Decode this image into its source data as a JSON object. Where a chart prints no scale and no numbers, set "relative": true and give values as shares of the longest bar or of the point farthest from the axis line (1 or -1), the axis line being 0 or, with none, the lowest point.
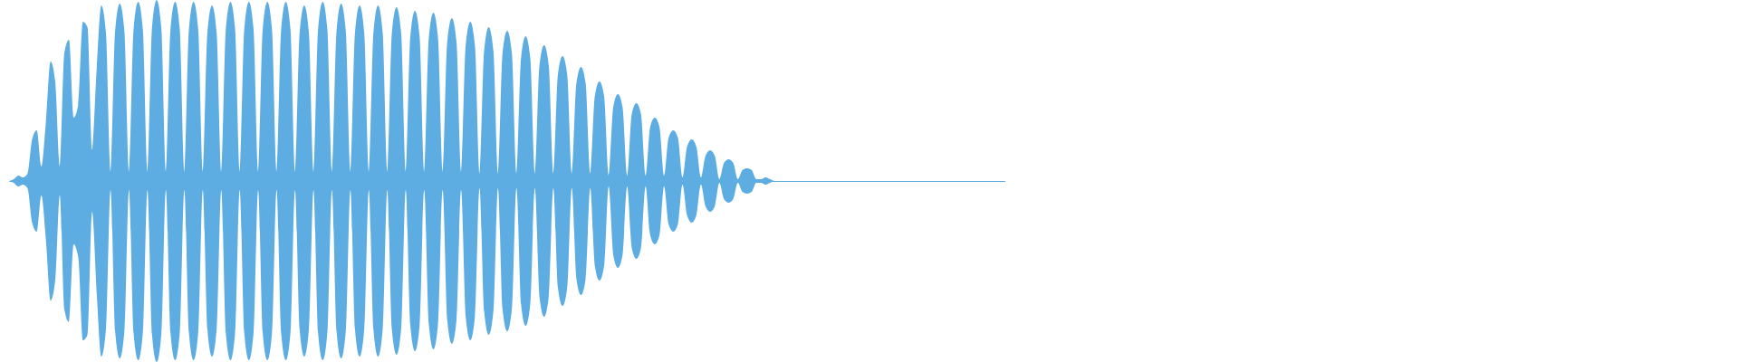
{
  "chart_data": {
    "type": "area",
    "relative": true,
    "categories": [
      null,
      null,
      null,
      null,
      null,
      null,
      null,
      null,
      null,
      null,
      null,
      null,
      null,
      null,
      null,
      null,
      null,
      null,
      null,
      null,
      null,
      null,
      null,
      null,
      null,
      null,
      null,
      null,
      null,
      null,
      null,
      null,
      null,
      null,
      null,
      null,
      null,
      null,
      null,
      null,
      null,
      null,
      null,
      null,
      null,
      null,
      null,
      null,
      null,
      null,
      null,
      null,
      null,
      null,
      null,
      null,
      null,
      null,
      null,
      null,
      null,
      null,
      null,
      null,
      null,
      null,
      null,
      null,
      null,
      null,
      null,
      null,
      null,
      null,
      null,
      null,
      null,
      null,
      null,
      null,
      null,
      null,
      null,
      null,
      null,
      null,
      null,
      null,
      null,
      null,
      null,
      null,
      null,
      null,
      null,
      null,
      null,
      null,
      null,
      null,
      null,
      null,
      null,
      null,
      null,
      null,
      null,
      null,
      null,
      null,
      null,
      null,
      null,
      null,
      null,
      null,
      null,
      null,
      null,
      null,
      null,
      null,
      null,
      null,
      null,
      null,
      null,
      null,
      null,
      null,
      null,
      null,
      null,
      null,
      null,
      null,
      null,
      null,
      null,
      null,
      null,
      null,
      null,
      null,
      null,
      null,
      null,
      null,
      null,
      null,
      null,
      null,
      null,
      null,
      null,
      null,
      null,
      null,
      null,
      null,
      null,
      null,
      null,
      null,
      null,
      null,
      null,
      null,
      null,
      null,
      null,
      null,
      null,
      null,
      null,
      null,
      null,
      null,
      null,
      null,
      null,
      null,
      null,
      null,
      null,
      null,
      null,
      null,
      null,
      null,
      null,
      null,
      null,
      null,
      null,
      null,
      null,
      null,
      null,
      null,
      null,
      null,
      null,
      null,
      null,
      null,
      null,
      null,
      null,
      null,
      null,
      null,
      null,
      null,
      null,
      null,
      null
    ],
    "series": [
      {
        "color": "#5dade2",
        "values": [
          0,
          0.01,
          0.03,
          0.02,
          0.04,
          0.23,
          0.28,
          0.08,
          0.33,
          0.66,
          0.55,
          0.08,
          0.71,
          0.78,
          0.35,
          0.42,
          0.88,
          0.85,
          0.17,
          0.62,
          0.97,
          0.82,
          0.05,
          0.83,
          0.98,
          0.83,
          0.05,
          0.84,
          0.99,
          0.84,
          0.05,
          0.85,
          1,
          0.85,
          0.05,
          0.84,
          0.99,
          0.84,
          0.05,
          0.84,
          0.99,
          0.84,
          0.05,
          0.82,
          0.97,
          0.82,
          0.05,
          0.84,
          0.99,
          0.84,
          0.05,
          0.84,
          0.99,
          0.84,
          0.05,
          0.84,
          0.99,
          0.84,
          0.05,
          0.84,
          0.99,
          0.84,
          0.05,
          0.82,
          0.97,
          0.82,
          0.05,
          0.84,
          0.99,
          0.84,
          0.05,
          0.83,
          0.98,
          0.83,
          0.05,
          0.82,
          0.97,
          0.82,
          0.05,
          0.82,
          0.97,
          0.82,
          0.05,
          0.82,
          0.96,
          0.82,
          0.05,
          0.8,
          0.94,
          0.8,
          0.05,
          0.79,
          0.93,
          0.79,
          0.05,
          0.77,
          0.9,
          0.77,
          0.05,
          0.75,
          0.88,
          0.75,
          0.04,
          0.72,
          0.85,
          0.72,
          0.04,
          0.71,
          0.83,
          0.71,
          0.04,
          0.68,
          0.8,
          0.68,
          0.04,
          0.64,
          0.75,
          0.64,
          0.04,
          0.59,
          0.69,
          0.59,
          0.04,
          0.54,
          0.63,
          0.54,
          0.04,
          0.47,
          0.55,
          0.47,
          0.03,
          0.41,
          0.48,
          0.41,
          0.03,
          0.37,
          0.43,
          0.37,
          0.03,
          0.3,
          0.35,
          0.3,
          0.03,
          0.24,
          0.28,
          0.24,
          0.02,
          0.19,
          0.23,
          0.19,
          0.02,
          0.14,
          0.17,
          0.14,
          0.01,
          0.1,
          0.12,
          0.1,
          0.01,
          0.06,
          0.07,
          0.06,
          0.01,
          0.01,
          0.02,
          0.01,
          0,
          0,
          0,
          0,
          0,
          0,
          0,
          0,
          0,
          0,
          0,
          0,
          0,
          0,
          0,
          0,
          0,
          0,
          0,
          0,
          0,
          0,
          0,
          0,
          0,
          0,
          0,
          0,
          0,
          0,
          0,
          0,
          0,
          0,
          0,
          0,
          0,
          0,
          0,
          0,
          0,
          0,
          0,
          0,
          0,
          0,
          0,
          0,
          0,
          0,
          0
        ]
      },
      {
        "color": "#5dade3",
        "values": [
          0,
          -0.01,
          -0.03,
          -0.02,
          -0.04,
          -0.23,
          -0.28,
          -0.08,
          -0.33,
          -0.66,
          -0.55,
          -0.08,
          -0.71,
          -0.78,
          -0.35,
          -0.42,
          -0.88,
          -0.85,
          -0.17,
          -0.62,
          -0.97,
          -0.82,
          -0.05,
          -0.83,
          -0.98,
          -0.83,
          -0.05,
          -0.84,
          -0.99,
          -0.84,
          -0.05,
          -0.85,
          -1,
          -0.85,
          -0.05,
          -0.84,
          -0.99,
          -0.84,
          -0.05,
          -0.84,
          -0.99,
          -0.84,
          -0.05,
          -0.82,
          -0.97,
          -0.82,
          -0.05,
          -0.84,
          -0.99,
          -0.84,
          -0.05,
          -0.84,
          -0.99,
          -0.84,
          -0.05,
          -0.84,
          -0.99,
          -0.84,
          -0.05,
          -0.84,
          -0.99,
          -0.84,
          -0.05,
          -0.82,
          -0.97,
          -0.82,
          -0.05,
          -0.84,
          -0.99,
          -0.84,
          -0.05,
          -0.83,
          -0.98,
          -0.83,
          -0.05,
          -0.82,
          -0.97,
          -0.82,
          -0.05,
          -0.82,
          -0.97,
          -0.82,
          -0.05,
          -0.82,
          -0.96,
          -0.82,
          -0.05,
          -0.8,
          -0.94,
          -0.8,
          -0.05,
          -0.79,
          -0.93,
          -0.79,
          -0.05,
          -0.77,
          -0.9,
          -0.77,
          -0.05,
          -0.75,
          -0.88,
          -0.75,
          -0.04,
          -0.72,
          -0.85,
          -0.72,
          -0.04,
          -0.71,
          -0.83,
          -0.71,
          -0.04,
          -0.68,
          -0.8,
          -0.68,
          -0.04,
          -0.64,
          -0.75,
          -0.64,
          -0.04,
          -0.59,
          -0.69,
          -0.59,
          -0.04,
          -0.54,
          -0.63,
          -0.54,
          -0.04,
          -0.47,
          -0.55,
          -0.47,
          -0.03,
          -0.41,
          -0.48,
          -0.41,
          -0.03,
          -0.37,
          -0.43,
          -0.37,
          -0.03,
          -0.3,
          -0.35,
          -0.3,
          -0.03,
          -0.24,
          -0.28,
          -0.24,
          -0.02,
          -0.19,
          -0.23,
          -0.19,
          -0.02,
          -0.14,
          -0.17,
          -0.14,
          -0.01,
          -0.1,
          -0.12,
          -0.1,
          -0.01,
          -0.06,
          -0.07,
          -0.06,
          -0.01,
          -0.01,
          -0.02,
          -0.01,
          0,
          0,
          0,
          0,
          0,
          0,
          0,
          0,
          0,
          0,
          0,
          0,
          0,
          0,
          0,
          0,
          0,
          0,
          0,
          0,
          0,
          0,
          0,
          0,
          0,
          0,
          0,
          0,
          0,
          0,
          0,
          0,
          0,
          0,
          0,
          0,
          0,
          0,
          0,
          0,
          0,
          0,
          0,
          0,
          0,
          0,
          0,
          0,
          0,
          0,
          0
        ]
      }
    ]
  }
}
